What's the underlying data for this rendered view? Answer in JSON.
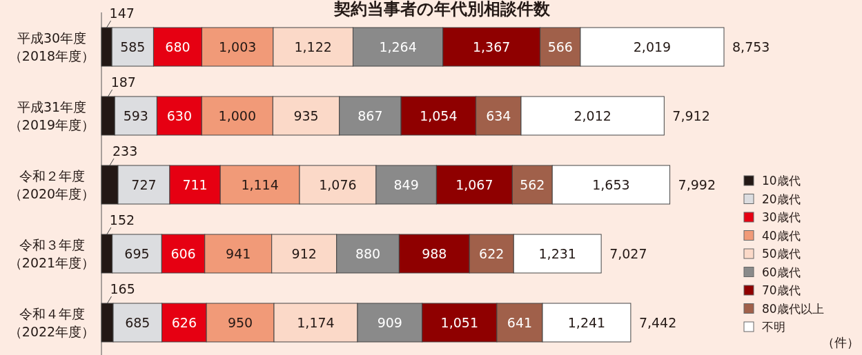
{
  "chart_data": {
    "type": "bar",
    "orientation": "horizontal",
    "stacked": true,
    "legend": "right",
    "title": "契約当事者の年代別相談件数",
    "annotations": [
      "（件）"
    ],
    "categories": [
      "平成30年度（2018年度）",
      "平成31年度（2019年度）",
      "令和２年度（2020年度）",
      "令和３年度（2021年度）",
      "令和４年度（2022年度）"
    ],
    "series": [
      {
        "name": "10歳代",
        "color": "#231815",
        "values": [
          147,
          187,
          233,
          152,
          165
        ],
        "value_labels": [
          "147",
          "187",
          "233",
          "152",
          "165"
        ]
      },
      {
        "name": "20歳代",
        "color": "#dcdde0",
        "values": [
          585,
          593,
          727,
          695,
          685
        ],
        "value_labels": [
          "585",
          "593",
          "727",
          "695",
          "685"
        ]
      },
      {
        "name": "30歳代",
        "color": "#e60012",
        "values": [
          680,
          630,
          711,
          606,
          626
        ],
        "value_labels": [
          "680",
          "630",
          "711",
          "606",
          "626"
        ]
      },
      {
        "name": "40歳代",
        "color": "#f19a78",
        "values": [
          1003,
          1000,
          1114,
          941,
          950
        ],
        "value_labels": [
          "1,003",
          "1,000",
          "1,114",
          "941",
          "950"
        ]
      },
      {
        "name": "50歳代",
        "color": "#fbd9c8",
        "values": [
          1122,
          935,
          1076,
          912,
          1174
        ],
        "value_labels": [
          "1,122",
          "935",
          "1,076",
          "912",
          "1,174"
        ]
      },
      {
        "name": "60歳代",
        "color": "#8a8a8a",
        "values": [
          1264,
          867,
          849,
          880,
          909
        ],
        "value_labels": [
          "1,264",
          "867",
          "849",
          "880",
          "909"
        ]
      },
      {
        "name": "70歳代",
        "color": "#8f0000",
        "values": [
          1367,
          1054,
          1067,
          988,
          1051
        ],
        "value_labels": [
          "1,367",
          "1,054",
          "1,067",
          "988",
          "1,051"
        ]
      },
      {
        "name": "80歳代以上",
        "color": "#a0604a",
        "values": [
          566,
          634,
          562,
          622,
          641
        ],
        "value_labels": [
          "566",
          "634",
          "562",
          "622",
          "641"
        ]
      },
      {
        "name": "不明",
        "color": "#ffffff",
        "values": [
          2019,
          2012,
          1653,
          1231,
          1241
        ],
        "value_labels": [
          "2,019",
          "2,012",
          "1,653",
          "1,231",
          "1,241"
        ]
      }
    ],
    "totals": [
      "8,753",
      "7,912",
      "7,992",
      "7,027",
      "7,442"
    ]
  }
}
